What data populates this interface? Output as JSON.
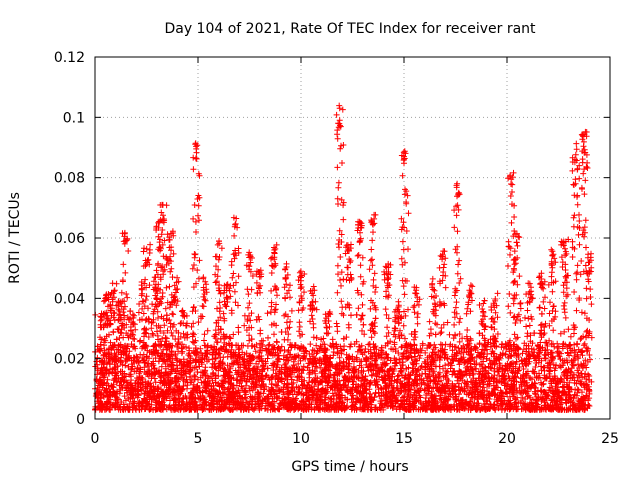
{
  "chart_data": {
    "type": "scatter",
    "title": "Day 104 of 2021, Rate Of TEC Index for receiver rant",
    "xlabel": "GPS time / hours",
    "ylabel": "ROTI / TECUs",
    "xlim": [
      0,
      25
    ],
    "ylim": [
      0,
      0.12
    ],
    "xticks": [
      0,
      5,
      10,
      15,
      20,
      25
    ],
    "yticks": [
      0,
      0.02,
      0.04,
      0.06,
      0.08,
      0.1,
      0.12
    ],
    "xtick_labels": [
      "0",
      "5",
      "10",
      "15",
      "20",
      "25"
    ],
    "ytick_labels": [
      "0",
      "0.02",
      "0.04",
      "0.06",
      "0.08",
      "0.1",
      "0.12"
    ],
    "grid": true,
    "marker": "+",
    "color": "#ff0000",
    "data_range_hours": [
      0,
      24
    ],
    "baseline_typical": [
      0.003,
      0.025
    ],
    "peaks": [
      {
        "x": 0.3,
        "y": 0.036
      },
      {
        "x": 0.6,
        "y": 0.042
      },
      {
        "x": 0.9,
        "y": 0.045
      },
      {
        "x": 1.2,
        "y": 0.04
      },
      {
        "x": 1.45,
        "y": 0.062
      },
      {
        "x": 1.8,
        "y": 0.036
      },
      {
        "x": 2.3,
        "y": 0.047
      },
      {
        "x": 2.5,
        "y": 0.058
      },
      {
        "x": 2.9,
        "y": 0.05
      },
      {
        "x": 3.1,
        "y": 0.066
      },
      {
        "x": 3.3,
        "y": 0.072
      },
      {
        "x": 3.65,
        "y": 0.063
      },
      {
        "x": 3.9,
        "y": 0.048
      },
      {
        "x": 4.3,
        "y": 0.036
      },
      {
        "x": 4.9,
        "y": 0.092
      },
      {
        "x": 5.3,
        "y": 0.048
      },
      {
        "x": 6.0,
        "y": 0.06
      },
      {
        "x": 6.4,
        "y": 0.045
      },
      {
        "x": 6.8,
        "y": 0.068
      },
      {
        "x": 7.5,
        "y": 0.056
      },
      {
        "x": 8.0,
        "y": 0.05
      },
      {
        "x": 8.7,
        "y": 0.058
      },
      {
        "x": 9.3,
        "y": 0.052
      },
      {
        "x": 10.0,
        "y": 0.05
      },
      {
        "x": 10.6,
        "y": 0.044
      },
      {
        "x": 11.3,
        "y": 0.036
      },
      {
        "x": 11.9,
        "y": 0.105
      },
      {
        "x": 12.3,
        "y": 0.058
      },
      {
        "x": 12.9,
        "y": 0.066
      },
      {
        "x": 13.5,
        "y": 0.068
      },
      {
        "x": 14.2,
        "y": 0.052
      },
      {
        "x": 14.7,
        "y": 0.04
      },
      {
        "x": 15.05,
        "y": 0.089
      },
      {
        "x": 15.6,
        "y": 0.044
      },
      {
        "x": 16.4,
        "y": 0.048
      },
      {
        "x": 16.9,
        "y": 0.056
      },
      {
        "x": 17.6,
        "y": 0.079
      },
      {
        "x": 18.2,
        "y": 0.045
      },
      {
        "x": 18.8,
        "y": 0.04
      },
      {
        "x": 19.4,
        "y": 0.042
      },
      {
        "x": 20.2,
        "y": 0.082
      },
      {
        "x": 20.5,
        "y": 0.062
      },
      {
        "x": 21.1,
        "y": 0.045
      },
      {
        "x": 21.7,
        "y": 0.05
      },
      {
        "x": 22.2,
        "y": 0.058
      },
      {
        "x": 22.8,
        "y": 0.06
      },
      {
        "x": 23.35,
        "y": 0.092
      },
      {
        "x": 23.75,
        "y": 0.096
      },
      {
        "x": 23.95,
        "y": 0.055
      }
    ]
  }
}
